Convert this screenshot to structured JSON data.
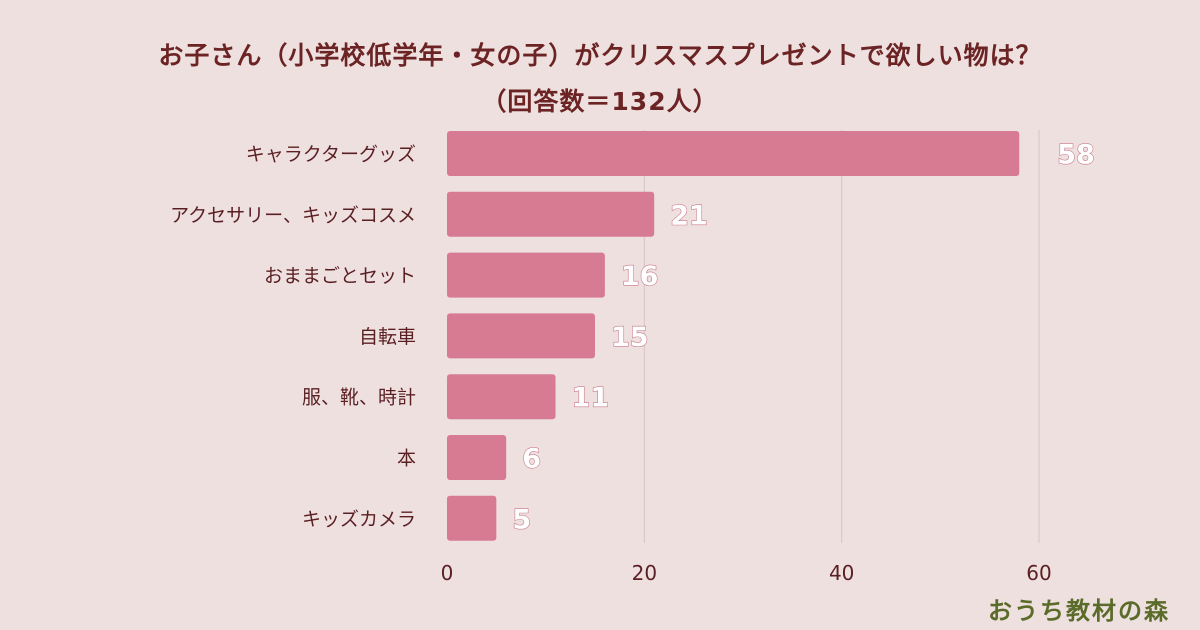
{
  "colors": {
    "background": "#efe0e0",
    "bar": "#d77b93",
    "grid": "#d6c4c4",
    "title": "#6b2324",
    "label": "#5a1f22",
    "logo": "#5a6b2a"
  },
  "logo": {
    "text": "おうち教材の森"
  },
  "chart_data": {
    "type": "bar",
    "orientation": "horizontal",
    "title": "お子さん（小学校低学年・女の子）がクリスマスプレゼントで欲しい物は？",
    "subtitle": "（回答数＝132人）",
    "xlabel": "",
    "ylabel": "",
    "categories": [
      "キャラクターグッズ",
      "アクセサリー、キッズコスメ",
      "おままごとセット",
      "自転車",
      "服、靴、時計",
      "本",
      "キッズカメラ"
    ],
    "values": [
      58,
      21,
      16,
      15,
      11,
      6,
      5
    ],
    "xlim": [
      0,
      60
    ],
    "ticks": [
      0,
      20,
      40,
      60
    ],
    "tick_labels": [
      "0",
      "20",
      "40",
      "60"
    ],
    "value_labels": [
      "58",
      "21",
      "16",
      "15",
      "11",
      "6",
      "5"
    ],
    "grid": true,
    "legend": "none"
  }
}
